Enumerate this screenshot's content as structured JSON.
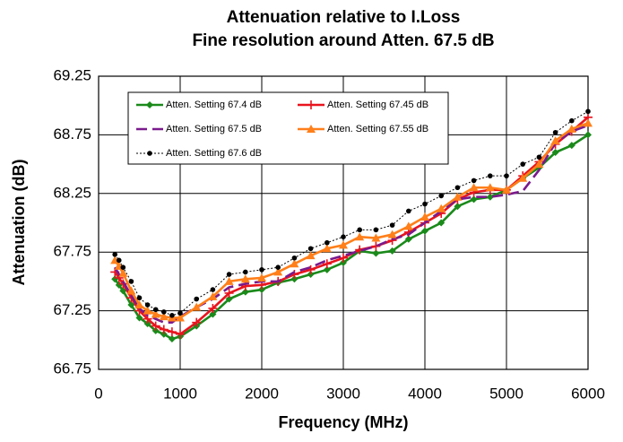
{
  "chart_data": {
    "type": "line",
    "title": "Attenuation relative to I.Loss",
    "subtitle": "Fine resolution around Atten. 67.5 dB",
    "x_label": "Frequency (MHz)",
    "y_label": "Attenuation (dB)",
    "x": [
      200,
      250,
      300,
      400,
      500,
      600,
      700,
      800,
      900,
      1000,
      1200,
      1400,
      1600,
      1800,
      2000,
      2200,
      2400,
      2600,
      2800,
      3000,
      3200,
      3400,
      3600,
      3800,
      4000,
      4200,
      4400,
      4600,
      4800,
      5000,
      5200,
      5400,
      5600,
      5800,
      6000
    ],
    "series": [
      {
        "name": "Atten. Setting 67.4 dB",
        "color": "#1a8a1a",
        "marker": "diamond",
        "dash": "none",
        "values": [
          67.52,
          67.47,
          67.42,
          67.3,
          67.19,
          67.14,
          67.08,
          67.05,
          67.01,
          67.03,
          67.12,
          67.22,
          67.35,
          67.41,
          67.43,
          67.49,
          67.52,
          67.56,
          67.6,
          67.66,
          67.76,
          67.74,
          67.76,
          67.86,
          67.93,
          68.0,
          68.14,
          68.2,
          68.22,
          68.28,
          68.38,
          68.47,
          68.6,
          68.66,
          68.75
        ]
      },
      {
        "name": "Atten. Setting 67.45 dB",
        "color": "#e8141e",
        "marker": "plus",
        "dash": "none",
        "values": [
          67.58,
          67.53,
          67.48,
          67.36,
          67.25,
          67.18,
          67.12,
          67.09,
          67.07,
          67.05,
          67.15,
          67.27,
          67.4,
          67.46,
          67.47,
          67.5,
          67.56,
          67.6,
          67.65,
          67.7,
          67.77,
          67.8,
          67.85,
          67.92,
          68.0,
          68.08,
          68.2,
          68.26,
          68.28,
          68.28,
          68.4,
          68.52,
          68.67,
          68.78,
          68.9
        ]
      },
      {
        "name": "Atten. Setting 67.5 dB",
        "color": "#7a1a8c",
        "marker": "none",
        "dash": "12,6",
        "values": [
          67.62,
          67.56,
          67.5,
          67.38,
          67.27,
          67.21,
          67.18,
          67.15,
          67.15,
          67.2,
          67.28,
          67.35,
          67.45,
          67.48,
          67.5,
          67.5,
          67.58,
          67.62,
          67.68,
          67.72,
          67.76,
          67.8,
          67.86,
          67.9,
          68.0,
          68.1,
          68.2,
          68.22,
          68.22,
          68.24,
          68.27,
          68.45,
          68.68,
          68.78,
          68.83
        ]
      },
      {
        "name": "Atten. Setting 67.55 dB",
        "color": "#ff7f1a",
        "marker": "triangle",
        "dash": "none",
        "values": [
          67.68,
          67.63,
          67.57,
          67.42,
          67.3,
          67.25,
          67.22,
          67.2,
          67.19,
          67.19,
          67.28,
          67.37,
          67.5,
          67.52,
          67.53,
          67.58,
          67.65,
          67.72,
          67.78,
          67.81,
          67.88,
          67.87,
          67.9,
          67.97,
          68.05,
          68.12,
          68.22,
          68.3,
          68.3,
          68.28,
          68.38,
          68.5,
          68.7,
          68.8,
          68.85
        ]
      },
      {
        "name": "Atten. Setting 67.6 dB",
        "color": "#000000",
        "marker": "circle",
        "dash": "2,2",
        "values": [
          67.73,
          67.68,
          67.62,
          67.5,
          67.36,
          67.3,
          67.26,
          67.24,
          67.21,
          67.23,
          67.35,
          67.43,
          67.56,
          67.58,
          67.6,
          67.62,
          67.7,
          67.78,
          67.83,
          67.88,
          67.94,
          67.94,
          67.98,
          68.1,
          68.16,
          68.23,
          68.3,
          68.36,
          68.4,
          68.4,
          68.5,
          68.56,
          68.77,
          68.87,
          68.95
        ]
      }
    ],
    "xlim": [
      0,
      6000
    ],
    "xticks": [
      0,
      1000,
      2000,
      3000,
      4000,
      5000,
      6000
    ],
    "ylim": [
      66.75,
      69.25
    ],
    "yticks": [
      66.75,
      67.25,
      67.75,
      68.25,
      68.75,
      69.25
    ],
    "grid": true,
    "legend": "upper left"
  }
}
